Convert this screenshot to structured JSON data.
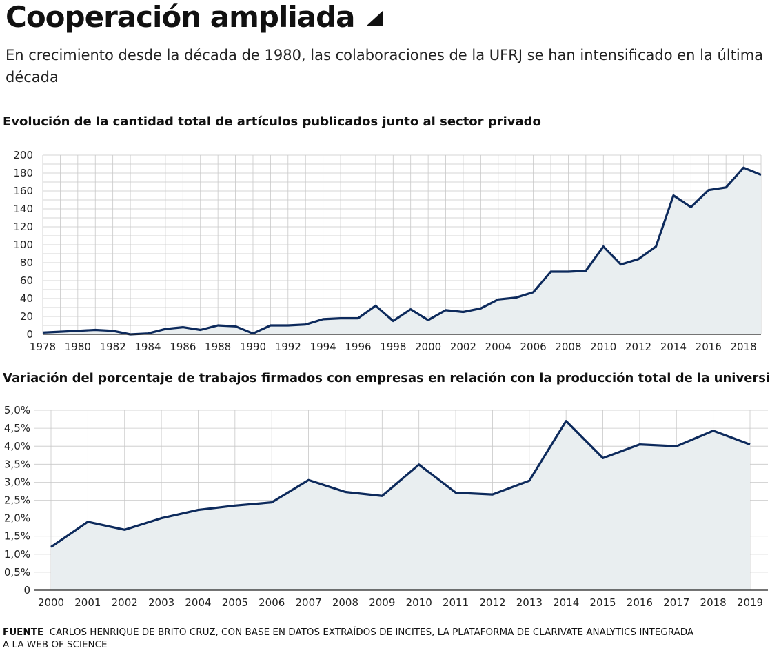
{
  "header": {
    "title": "Cooperación ampliada",
    "subtitle": "En crecimiento desde la década de 1980, las colaboraciones de la UFRJ se han intensificado en la última década"
  },
  "source": {
    "label": "FUENTE",
    "text": "CARLOS HENRIQUE DE BRITO CRUZ, CON BASE EN DATOS EXTRAÍDOS DE INCITES, LA PLATAFORMA DE CLARIVATE ANALYTICS INTEGRADA A LA WEB OF SCIENCE"
  },
  "colors": {
    "line": "#0d2a5c",
    "area": "#e9eef0",
    "grid": "#c8c8c8",
    "axis": "#555555"
  },
  "chart_data": [
    {
      "type": "area",
      "title": "Evolución de la cantidad total de artículos publicados junto al sector privado",
      "x": [
        1978,
        1979,
        1980,
        1981,
        1982,
        1983,
        1984,
        1985,
        1986,
        1987,
        1988,
        1989,
        1990,
        1991,
        1992,
        1993,
        1994,
        1995,
        1996,
        1997,
        1998,
        1999,
        2000,
        2001,
        2002,
        2003,
        2004,
        2005,
        2006,
        2007,
        2008,
        2009,
        2010,
        2011,
        2012,
        2013,
        2014,
        2015,
        2016,
        2017,
        2018,
        2019
      ],
      "values": [
        2,
        3,
        4,
        5,
        4,
        0,
        1,
        6,
        8,
        5,
        10,
        9,
        1,
        10,
        10,
        11,
        17,
        18,
        18,
        32,
        15,
        28,
        16,
        27,
        25,
        29,
        39,
        41,
        47,
        70,
        70,
        71,
        98,
        78,
        84,
        98,
        155,
        142,
        161,
        164,
        186,
        178
      ],
      "x_tick_labels": [
        "1978",
        "1980",
        "1982",
        "1984",
        "1986",
        "1988",
        "1990",
        "1992",
        "1994",
        "1996",
        "1998",
        "2000",
        "2002",
        "2004",
        "2006",
        "2008",
        "2010",
        "2012",
        "2014",
        "2016",
        "2018"
      ],
      "y_tick_labels": [
        "0",
        "20",
        "40",
        "60",
        "80",
        "100",
        "120",
        "140",
        "160",
        "180",
        "200"
      ],
      "xlim": [
        1978,
        2019
      ],
      "ylim": [
        0,
        200
      ],
      "grid": true
    },
    {
      "type": "area",
      "title": "Variación del porcentaje de trabajos firmados con empresas en relación con la producción total de la universidad",
      "categories": [
        "2000",
        "2001",
        "2002",
        "2003",
        "2004",
        "2005",
        "2006",
        "2007",
        "2008",
        "2009",
        "2010",
        "2011",
        "2012",
        "2013",
        "2014",
        "2015",
        "2016",
        "2017",
        "2018",
        "2019"
      ],
      "values": [
        1.2,
        1.9,
        1.68,
        2.0,
        2.23,
        2.35,
        2.44,
        3.06,
        2.73,
        2.62,
        3.49,
        2.71,
        2.66,
        3.04,
        4.7,
        3.67,
        4.05,
        4.0,
        4.43,
        4.05
      ],
      "y_tick_labels": [
        "0",
        "0,5%",
        "1,0%",
        "1,5%",
        "2,0%",
        "2,5%",
        "3,0%",
        "3,5%",
        "4,0%",
        "4,5%",
        "5,0%"
      ],
      "ylim": [
        0,
        5
      ],
      "grid": true
    }
  ]
}
